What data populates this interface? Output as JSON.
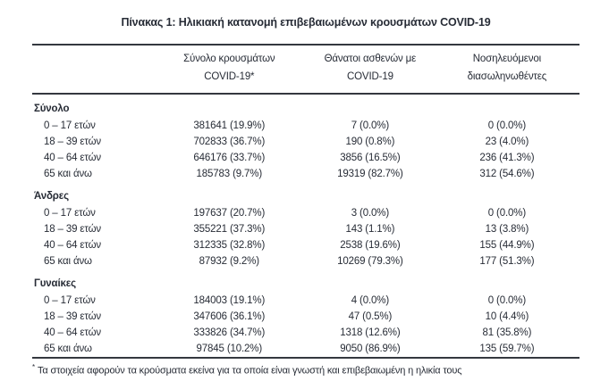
{
  "page": {
    "title": "Πίνακας 1: Ηλικιακή κατανομή επιβεβαιωμένων κρουσμάτων COVID-19",
    "footnote_marker": "*",
    "footnote": "Τα στοιχεία αφορούν τα κρούσματα εκείνα για τα οποία είναι γνωστή και επιβεβαιωμένη η ηλικία τους"
  },
  "colors": {
    "text": "#272c36",
    "rule": "#34383f",
    "background": "#ffffff"
  },
  "table": {
    "columns": [
      {
        "label": ""
      },
      {
        "label": "Σύνολο κρουσμάτων\nCOVID-19*"
      },
      {
        "label": "Θάνατοι ασθενών με\nCOVID-19"
      },
      {
        "label": "Νοσηλευόμενοι\nδιασωληνωθέντες"
      }
    ],
    "sections": [
      {
        "label": "Σύνολο",
        "rows": [
          {
            "label": "0 – 17 ετών",
            "cells": [
              "381641 (19.9%)",
              "7 (0.0%)",
              "0 (0.0%)"
            ]
          },
          {
            "label": "18 – 39 ετών",
            "cells": [
              "702833 (36.7%)",
              "190 (0.8%)",
              "23 (4.0%)"
            ]
          },
          {
            "label": "40 – 64 ετών",
            "cells": [
              "646176 (33.7%)",
              "3856 (16.5%)",
              "236 (41.3%)"
            ]
          },
          {
            "label": "65 και άνω",
            "cells": [
              "185783 (9.7%)",
              "19319 (82.7%)",
              "312 (54.6%)"
            ]
          }
        ]
      },
      {
        "label": "Άνδρες",
        "rows": [
          {
            "label": "0 – 17 ετών",
            "cells": [
              "197637 (20.7%)",
              "3 (0.0%)",
              "0 (0.0%)"
            ]
          },
          {
            "label": "18 – 39 ετών",
            "cells": [
              "355221 (37.3%)",
              "143 (1.1%)",
              "13 (3.8%)"
            ]
          },
          {
            "label": "40 – 64 ετών",
            "cells": [
              "312335 (32.8%)",
              "2538 (19.6%)",
              "155 (44.9%)"
            ]
          },
          {
            "label": "65 και άνω",
            "cells": [
              "87932 (9.2%)",
              "10269 (79.3%)",
              "177 (51.3%)"
            ]
          }
        ]
      },
      {
        "label": "Γυναίκες",
        "rows": [
          {
            "label": "0 – 17 ετών",
            "cells": [
              "184003 (19.1%)",
              "4 (0.0%)",
              "0 (0.0%)"
            ]
          },
          {
            "label": "18 – 39 ετών",
            "cells": [
              "347606 (36.1%)",
              "47 (0.5%)",
              "10 (4.4%)"
            ]
          },
          {
            "label": "40 – 64 ετών",
            "cells": [
              "333826 (34.7%)",
              "1318 (12.6%)",
              "81 (35.8%)"
            ]
          },
          {
            "label": "65 και άνω",
            "cells": [
              "97845 (10.2%)",
              "9050 (86.9%)",
              "135 (59.7%)"
            ]
          }
        ]
      }
    ]
  }
}
